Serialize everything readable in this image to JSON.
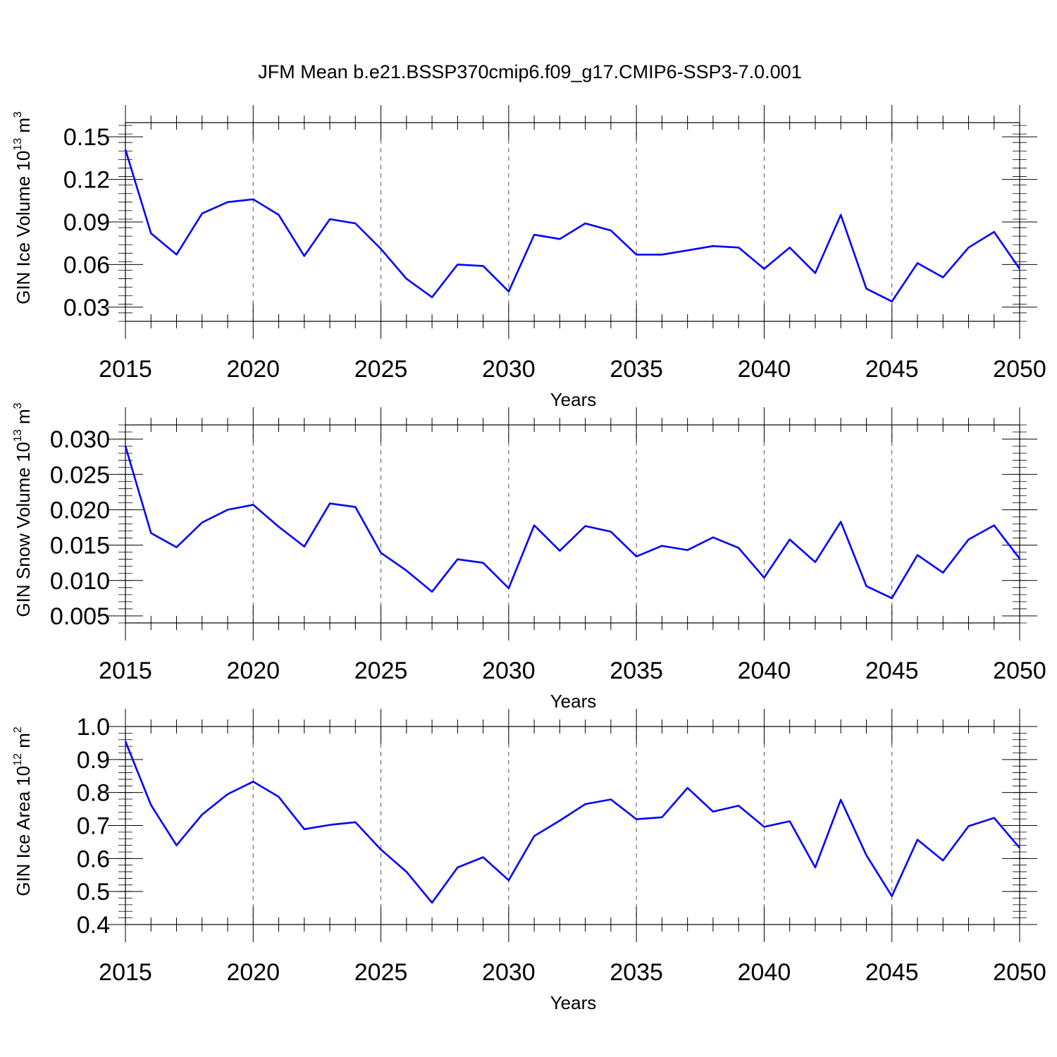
{
  "figure": {
    "title": "JFM Mean b.e21.BSSP370cmip6.f09_g17.CMIP6-SSP3-7.0.001",
    "line_color": "#0000ff",
    "grid_style": "dashed vertical lines at major x ticks"
  },
  "chart_data": [
    {
      "type": "line",
      "ylabel": {
        "prefix": "GIN Ice Volume 10",
        "exponent": "13",
        "unit": " m",
        "unit_exp": "3"
      },
      "xlabel": "Years",
      "xlim": [
        2015,
        2050
      ],
      "ylim": [
        0.02,
        0.16
      ],
      "xticks": [
        2015,
        2020,
        2025,
        2030,
        2035,
        2040,
        2045,
        2050
      ],
      "yticks": [
        0.03,
        0.06,
        0.09,
        0.12,
        0.15
      ],
      "ytick_labels": [
        "0.03",
        "0.06",
        "0.09",
        "0.12",
        "0.15"
      ],
      "y_minor_step": 0.006,
      "grid": true,
      "x": [
        2015,
        2016,
        2017,
        2018,
        2019,
        2020,
        2021,
        2022,
        2023,
        2024,
        2025,
        2026,
        2027,
        2028,
        2029,
        2030,
        2031,
        2032,
        2033,
        2034,
        2035,
        2036,
        2037,
        2038,
        2039,
        2040,
        2041,
        2042,
        2043,
        2044,
        2045,
        2046,
        2047,
        2048,
        2049,
        2050
      ],
      "y": [
        0.141,
        0.082,
        0.067,
        0.096,
        0.104,
        0.106,
        0.095,
        0.066,
        0.092,
        0.089,
        0.071,
        0.05,
        0.037,
        0.06,
        0.059,
        0.041,
        0.081,
        0.078,
        0.089,
        0.084,
        0.067,
        0.067,
        0.07,
        0.073,
        0.072,
        0.057,
        0.072,
        0.054,
        0.095,
        0.043,
        0.034,
        0.061,
        0.051,
        0.072,
        0.083,
        0.057
      ]
    },
    {
      "type": "line",
      "ylabel": {
        "prefix": "GIN Snow Volume 10",
        "exponent": "13",
        "unit": " m",
        "unit_exp": "3"
      },
      "xlabel": "Years",
      "xlim": [
        2015,
        2050
      ],
      "ylim": [
        0.004,
        0.032
      ],
      "xticks": [
        2015,
        2020,
        2025,
        2030,
        2035,
        2040,
        2045,
        2050
      ],
      "yticks": [
        0.005,
        0.01,
        0.015,
        0.02,
        0.025,
        0.03
      ],
      "ytick_labels": [
        "0.005",
        "0.010",
        "0.015",
        "0.020",
        "0.025",
        "0.030"
      ],
      "y_minor_step": 0.001,
      "grid": true,
      "x": [
        2015,
        2016,
        2017,
        2018,
        2019,
        2020,
        2021,
        2022,
        2023,
        2024,
        2025,
        2026,
        2027,
        2028,
        2029,
        2030,
        2031,
        2032,
        2033,
        2034,
        2035,
        2036,
        2037,
        2038,
        2039,
        2040,
        2041,
        2042,
        2043,
        2044,
        2045,
        2046,
        2047,
        2048,
        2049,
        2050
      ],
      "y": [
        0.029,
        0.0167,
        0.0147,
        0.0182,
        0.02,
        0.0207,
        0.0176,
        0.0148,
        0.0209,
        0.0204,
        0.0139,
        0.0114,
        0.0084,
        0.013,
        0.0125,
        0.0089,
        0.0178,
        0.0142,
        0.0177,
        0.0169,
        0.0134,
        0.0149,
        0.0143,
        0.0161,
        0.0146,
        0.0104,
        0.0158,
        0.0126,
        0.0183,
        0.0092,
        0.0075,
        0.0136,
        0.0111,
        0.0158,
        0.0178,
        0.0131
      ]
    },
    {
      "type": "line",
      "ylabel": {
        "prefix": "GIN Ice Area 10",
        "exponent": "12",
        "unit": " m",
        "unit_exp": "2"
      },
      "xlabel": "Years",
      "xlim": [
        2015,
        2050
      ],
      "ylim": [
        0.4,
        1.0
      ],
      "xticks": [
        2015,
        2020,
        2025,
        2030,
        2035,
        2040,
        2045,
        2050
      ],
      "yticks": [
        0.4,
        0.5,
        0.6,
        0.7,
        0.8,
        0.9,
        1.0
      ],
      "ytick_labels": [
        "0.4",
        "0.5",
        "0.6",
        "0.7",
        "0.8",
        "0.9",
        "1.0"
      ],
      "y_minor_step": 0.02,
      "grid": true,
      "x": [
        2015,
        2016,
        2017,
        2018,
        2019,
        2020,
        2021,
        2022,
        2023,
        2024,
        2025,
        2026,
        2027,
        2028,
        2029,
        2030,
        2031,
        2032,
        2033,
        2034,
        2035,
        2036,
        2037,
        2038,
        2039,
        2040,
        2041,
        2042,
        2043,
        2044,
        2045,
        2046,
        2047,
        2048,
        2049,
        2050
      ],
      "y": [
        0.955,
        0.762,
        0.64,
        0.733,
        0.795,
        0.833,
        0.787,
        0.689,
        0.702,
        0.71,
        0.627,
        0.56,
        0.466,
        0.573,
        0.604,
        0.534,
        0.668,
        0.715,
        0.765,
        0.779,
        0.719,
        0.725,
        0.814,
        0.742,
        0.76,
        0.696,
        0.713,
        0.573,
        0.778,
        0.61,
        0.486,
        0.657,
        0.594,
        0.698,
        0.723,
        0.632
      ]
    }
  ]
}
